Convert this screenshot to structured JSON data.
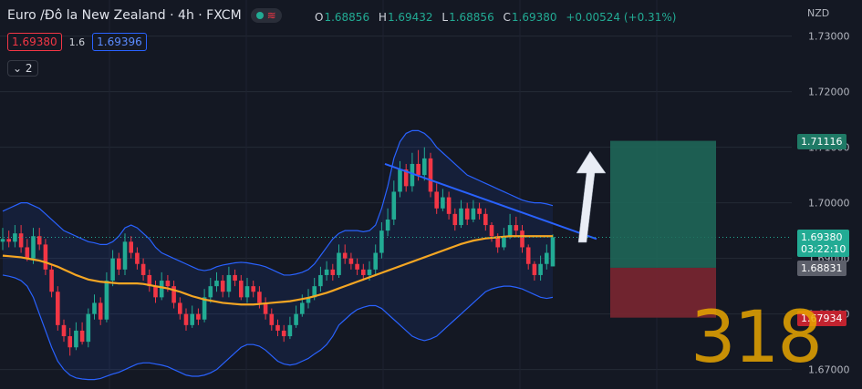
{
  "header": {
    "symbol": "Euro /Đô la New Zealand · 4h · FXCM",
    "status_dot_color": "#22ab94",
    "indicator_icon": "wave-icon"
  },
  "ohlc": {
    "o_label": "O",
    "o": "1.68856",
    "h_label": "H",
    "h": "1.69432",
    "l_label": "L",
    "l": "1.68856",
    "c_label": "C",
    "c": "1.69380",
    "change": "+0.00524 (+0.31%)"
  },
  "trade": {
    "sell": "1.69380",
    "spread": "1.6",
    "buy": "1.69396"
  },
  "collapse": {
    "label": "2",
    "icon": "chevron-down-icon"
  },
  "axis": {
    "currency": "NZD"
  },
  "labels": {
    "target": "1.71116",
    "last_price": "1.69380",
    "countdown": "03:22:10",
    "entry": "1.68831",
    "stop": "1.67934"
  },
  "watermark": "318",
  "colors": {
    "up": "#22ab94",
    "down": "#f23645",
    "ma": "#f5a623",
    "bands": "#2962ff",
    "trend": "#2962ff"
  },
  "chart_data": {
    "type": "candlestick",
    "ylim": [
      1.6665,
      1.7365
    ],
    "y_ticks": [
      "1.67000",
      "1.68000",
      "1.69000",
      "1.70000",
      "1.71000",
      "1.72000",
      "1.73000"
    ],
    "tick_values": [
      1.67,
      1.68,
      1.69,
      1.7,
      1.71,
      1.72,
      1.73
    ],
    "series": [
      {
        "name": "close",
        "values": [
          1.6935,
          1.693,
          1.6945,
          1.692,
          1.69,
          1.694,
          1.6925,
          1.688,
          1.684,
          1.678,
          1.676,
          1.674,
          1.677,
          1.675,
          1.68,
          1.682,
          1.679,
          1.686,
          1.69,
          1.688,
          1.693,
          1.691,
          1.689,
          1.687,
          1.685,
          1.683,
          1.686,
          1.685,
          1.682,
          1.68,
          1.678,
          1.68,
          1.679,
          1.683,
          1.685,
          1.686,
          1.684,
          1.687,
          1.686,
          1.683,
          1.685,
          1.684,
          1.682,
          1.68,
          1.678,
          1.677,
          1.676,
          1.678,
          1.68,
          1.682,
          1.683,
          1.685,
          1.687,
          1.688,
          1.687,
          1.691,
          1.69,
          1.689,
          1.688,
          1.687,
          1.688,
          1.691,
          1.695,
          1.697,
          1.702,
          1.706,
          1.703,
          1.707,
          1.705,
          1.708,
          1.702,
          1.699,
          1.701,
          1.698,
          1.696,
          1.699,
          1.697,
          1.699,
          1.698,
          1.696,
          1.694,
          1.692,
          1.694,
          1.696,
          1.695,
          1.692,
          1.689,
          1.687,
          1.689,
          1.691,
          1.6938
        ]
      }
    ],
    "candles": {
      "open": [
        1.693,
        1.6935,
        1.693,
        1.6945,
        1.692,
        1.69,
        1.694,
        1.6925,
        1.688,
        1.684,
        1.678,
        1.676,
        1.674,
        1.677,
        1.675,
        1.68,
        1.682,
        1.679,
        1.686,
        1.69,
        1.688,
        1.693,
        1.691,
        1.689,
        1.687,
        1.685,
        1.683,
        1.686,
        1.685,
        1.682,
        1.68,
        1.678,
        1.68,
        1.679,
        1.683,
        1.685,
        1.686,
        1.684,
        1.687,
        1.686,
        1.683,
        1.685,
        1.684,
        1.682,
        1.68,
        1.678,
        1.677,
        1.676,
        1.678,
        1.68,
        1.682,
        1.683,
        1.685,
        1.687,
        1.688,
        1.687,
        1.691,
        1.69,
        1.689,
        1.688,
        1.687,
        1.688,
        1.691,
        1.695,
        1.697,
        1.702,
        1.706,
        1.703,
        1.707,
        1.705,
        1.708,
        1.702,
        1.699,
        1.701,
        1.698,
        1.696,
        1.699,
        1.697,
        1.699,
        1.698,
        1.696,
        1.694,
        1.692,
        1.694,
        1.696,
        1.695,
        1.692,
        1.689,
        1.687,
        1.689,
        1.68856
      ],
      "high": [
        1.6955,
        1.695,
        1.696,
        1.696,
        1.6935,
        1.6955,
        1.6955,
        1.6935,
        1.689,
        1.685,
        1.679,
        1.6775,
        1.6785,
        1.6785,
        1.681,
        1.6835,
        1.683,
        1.6875,
        1.6915,
        1.691,
        1.6945,
        1.694,
        1.692,
        1.69,
        1.688,
        1.686,
        1.6875,
        1.687,
        1.686,
        1.683,
        1.681,
        1.6815,
        1.681,
        1.6845,
        1.6865,
        1.6875,
        1.687,
        1.6885,
        1.688,
        1.687,
        1.6865,
        1.686,
        1.685,
        1.683,
        1.681,
        1.679,
        1.678,
        1.6795,
        1.6815,
        1.6835,
        1.6845,
        1.6865,
        1.6885,
        1.6895,
        1.689,
        1.6925,
        1.6925,
        1.691,
        1.69,
        1.689,
        1.6895,
        1.6925,
        1.6965,
        1.699,
        1.704,
        1.7075,
        1.707,
        1.709,
        1.7095,
        1.71,
        1.709,
        1.7035,
        1.7025,
        1.702,
        1.699,
        1.7005,
        1.7,
        1.7005,
        1.7,
        1.699,
        1.6965,
        1.6945,
        1.6955,
        1.698,
        1.6975,
        1.696,
        1.6925,
        1.6895,
        1.6905,
        1.6925,
        1.69432
      ],
      "low": [
        1.6915,
        1.692,
        1.692,
        1.691,
        1.6895,
        1.689,
        1.6915,
        1.687,
        1.683,
        1.677,
        1.675,
        1.6725,
        1.6735,
        1.6745,
        1.674,
        1.679,
        1.678,
        1.6785,
        1.685,
        1.687,
        1.687,
        1.69,
        1.688,
        1.686,
        1.684,
        1.682,
        1.6825,
        1.684,
        1.681,
        1.679,
        1.677,
        1.6775,
        1.678,
        1.6785,
        1.682,
        1.684,
        1.683,
        1.683,
        1.685,
        1.6825,
        1.682,
        1.683,
        1.681,
        1.679,
        1.677,
        1.676,
        1.675,
        1.6755,
        1.6775,
        1.6795,
        1.681,
        1.6825,
        1.684,
        1.686,
        1.686,
        1.6865,
        1.689,
        1.688,
        1.687,
        1.686,
        1.686,
        1.687,
        1.69,
        1.694,
        1.696,
        1.701,
        1.702,
        1.702,
        1.704,
        1.704,
        1.701,
        1.698,
        1.6985,
        1.697,
        1.695,
        1.6955,
        1.696,
        1.6965,
        1.697,
        1.695,
        1.693,
        1.691,
        1.6915,
        1.6935,
        1.694,
        1.691,
        1.688,
        1.686,
        1.686,
        1.688,
        1.68856
      ]
    },
    "ma_orange": [
      1.6905,
      1.6904,
      1.6903,
      1.6902,
      1.69,
      1.6898,
      1.6896,
      1.6893,
      1.6889,
      1.6885,
      1.688,
      1.6875,
      1.687,
      1.6866,
      1.6862,
      1.686,
      1.6858,
      1.6857,
      1.6856,
      1.6855,
      1.6855,
      1.6855,
      1.6855,
      1.6854,
      1.6852,
      1.685,
      1.6848,
      1.6846,
      1.6843,
      1.684,
      1.6836,
      1.6832,
      1.6829,
      1.6826,
      1.6824,
      1.6822,
      1.682,
      1.6819,
      1.6818,
      1.6817,
      1.6817,
      1.6817,
      1.6818,
      1.6819,
      1.682,
      1.6821,
      1.6822,
      1.6823,
      1.6825,
      1.6827,
      1.6829,
      1.6832,
      1.6835,
      1.6838,
      1.6842,
      1.6846,
      1.685,
      1.6854,
      1.6858,
      1.6862,
      1.6866,
      1.687,
      1.6874,
      1.6878,
      1.6882,
      1.6886,
      1.689,
      1.6894,
      1.6898,
      1.6902,
      1.6906,
      1.691,
      1.6914,
      1.6918,
      1.6922,
      1.6926,
      1.6929,
      1.6932,
      1.6934,
      1.6936,
      1.6937,
      1.6938,
      1.6939,
      1.694,
      1.694,
      1.694,
      1.694,
      1.694,
      1.694,
      1.694,
      1.694
    ],
    "bb_upper": [
      1.6985,
      1.699,
      1.6995,
      1.7,
      1.7,
      1.6995,
      1.699,
      1.698,
      1.697,
      1.696,
      1.695,
      1.6945,
      1.694,
      1.6935,
      1.693,
      1.6928,
      1.6925,
      1.6925,
      1.693,
      1.694,
      1.6955,
      1.696,
      1.6955,
      1.6945,
      1.6935,
      1.692,
      1.691,
      1.6905,
      1.69,
      1.6895,
      1.689,
      1.6885,
      1.688,
      1.6878,
      1.688,
      1.6885,
      1.6888,
      1.689,
      1.6892,
      1.6893,
      1.6892,
      1.689,
      1.6888,
      1.6885,
      1.688,
      1.6875,
      1.687,
      1.687,
      1.6872,
      1.6875,
      1.688,
      1.689,
      1.6905,
      1.692,
      1.6935,
      1.6945,
      1.695,
      1.695,
      1.695,
      1.6948,
      1.695,
      1.696,
      1.699,
      1.703,
      1.708,
      1.711,
      1.7125,
      1.713,
      1.713,
      1.7125,
      1.7115,
      1.71,
      1.709,
      1.708,
      1.707,
      1.706,
      1.705,
      1.7045,
      1.704,
      1.7035,
      1.703,
      1.7025,
      1.702,
      1.7015,
      1.701,
      1.7005,
      1.7002,
      1.7,
      1.7,
      1.6998,
      1.6995
    ],
    "bb_lower": [
      1.687,
      1.6868,
      1.6865,
      1.686,
      1.685,
      1.683,
      1.68,
      1.677,
      1.674,
      1.6715,
      1.67,
      1.669,
      1.6685,
      1.6683,
      1.6682,
      1.6682,
      1.6684,
      1.6688,
      1.6692,
      1.6695,
      1.67,
      1.6705,
      1.671,
      1.6712,
      1.6712,
      1.671,
      1.6708,
      1.6705,
      1.67,
      1.6695,
      1.669,
      1.6688,
      1.6688,
      1.669,
      1.6694,
      1.67,
      1.671,
      1.672,
      1.673,
      1.674,
      1.6745,
      1.6745,
      1.6742,
      1.6735,
      1.6725,
      1.6715,
      1.671,
      1.6708,
      1.671,
      1.6715,
      1.672,
      1.6728,
      1.6735,
      1.6745,
      1.676,
      1.678,
      1.679,
      1.68,
      1.6808,
      1.6812,
      1.6815,
      1.6815,
      1.681,
      1.68,
      1.679,
      1.678,
      1.677,
      1.676,
      1.6755,
      1.6752,
      1.6755,
      1.676,
      1.677,
      1.678,
      1.679,
      1.68,
      1.681,
      1.682,
      1.683,
      1.684,
      1.6845,
      1.6848,
      1.685,
      1.685,
      1.6848,
      1.6845,
      1.684,
      1.6835,
      1.683,
      1.6828,
      1.683
    ],
    "trendline": [
      [
        1.707
      ],
      [
        1.6935
      ]
    ],
    "positions": {
      "target": 1.71116,
      "entry": 1.68831,
      "stop": 1.67934
    }
  }
}
